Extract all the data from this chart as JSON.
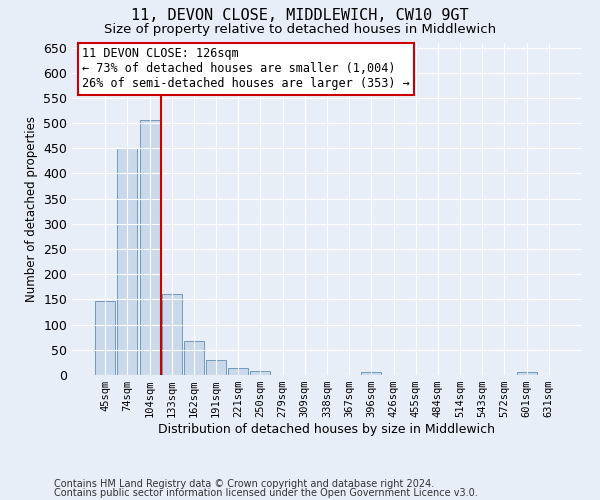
{
  "title": "11, DEVON CLOSE, MIDDLEWICH, CW10 9GT",
  "subtitle": "Size of property relative to detached houses in Middlewich",
  "xlabel": "Distribution of detached houses by size in Middlewich",
  "ylabel": "Number of detached properties",
  "footnote1": "Contains HM Land Registry data © Crown copyright and database right 2024.",
  "footnote2": "Contains public sector information licensed under the Open Government Licence v3.0.",
  "annotation_line1": "11 DEVON CLOSE: 126sqm",
  "annotation_line2": "← 73% of detached houses are smaller (1,004)",
  "annotation_line3": "26% of semi-detached houses are larger (353) →",
  "bar_labels": [
    "45sqm",
    "74sqm",
    "104sqm",
    "133sqm",
    "162sqm",
    "191sqm",
    "221sqm",
    "250sqm",
    "279sqm",
    "309sqm",
    "338sqm",
    "367sqm",
    "396sqm",
    "426sqm",
    "455sqm",
    "484sqm",
    "514sqm",
    "543sqm",
    "572sqm",
    "601sqm",
    "631sqm"
  ],
  "bar_values": [
    147,
    450,
    507,
    160,
    67,
    30,
    14,
    8,
    0,
    0,
    0,
    0,
    5,
    0,
    0,
    0,
    0,
    0,
    0,
    5,
    0
  ],
  "bar_color": "#c9d9eb",
  "bar_edge_color": "#7099bb",
  "red_line_x": 2.5,
  "ylim": [
    0,
    660
  ],
  "yticks": [
    0,
    50,
    100,
    150,
    200,
    250,
    300,
    350,
    400,
    450,
    500,
    550,
    600,
    650
  ],
  "background_color": "#e8eef8",
  "grid_color": "#ffffff",
  "red_line_color": "#cc0000",
  "box_color": "#ffffff",
  "box_edge_color": "#cc0000",
  "title_fontsize": 11,
  "subtitle_fontsize": 9.5,
  "xlabel_fontsize": 9,
  "ylabel_fontsize": 8.5,
  "annotation_fontsize": 8.5,
  "footnote_fontsize": 7
}
